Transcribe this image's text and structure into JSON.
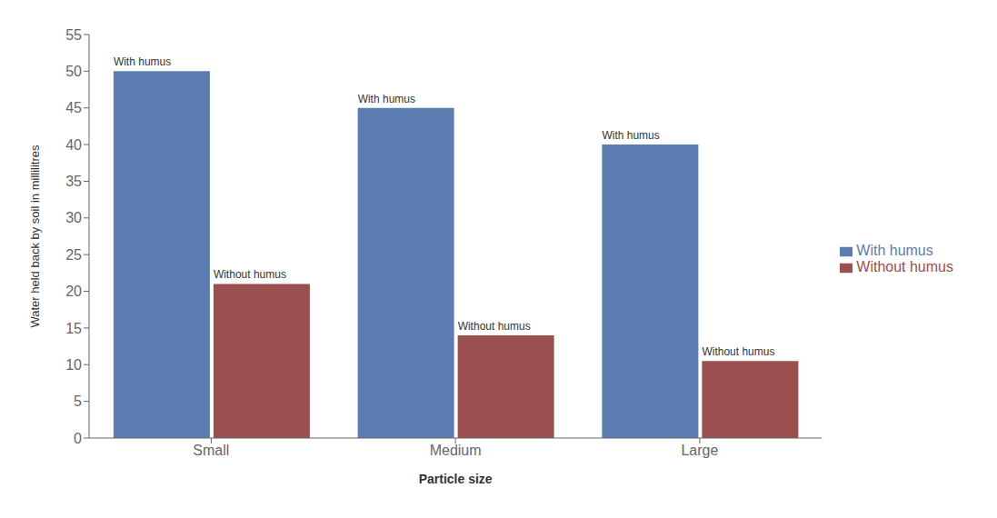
{
  "chart_data": {
    "type": "bar",
    "categories": [
      "Small",
      "Medium",
      "Large"
    ],
    "series": [
      {
        "name": "With humus",
        "color": "#5B7DB1",
        "values": [
          50,
          45,
          40
        ]
      },
      {
        "name": "Without humus",
        "color": "#9B4F4F",
        "values": [
          21,
          14,
          10.5
        ]
      }
    ],
    "xlabel": "Particle size",
    "ylabel": "Water held back by soil in millilitres",
    "ylim": [
      0,
      55
    ],
    "yticks": [
      0,
      5,
      10,
      15,
      20,
      25,
      30,
      35,
      40,
      45,
      50,
      55
    ],
    "grid": false,
    "legend": "right",
    "annotations": [
      {
        "text": "With humus",
        "category": "Small",
        "series": "With humus"
      },
      {
        "text": "With humus",
        "category": "Medium",
        "series": "With humus"
      },
      {
        "text": "With humus",
        "category": "Large",
        "series": "With humus"
      },
      {
        "text": "Without humus",
        "category": "Small",
        "series": "Without humus"
      },
      {
        "text": "Without humus",
        "category": "Medium",
        "series": "Without humus"
      },
      {
        "text": "Without humus",
        "category": "Large",
        "series": "Without humus"
      }
    ]
  }
}
